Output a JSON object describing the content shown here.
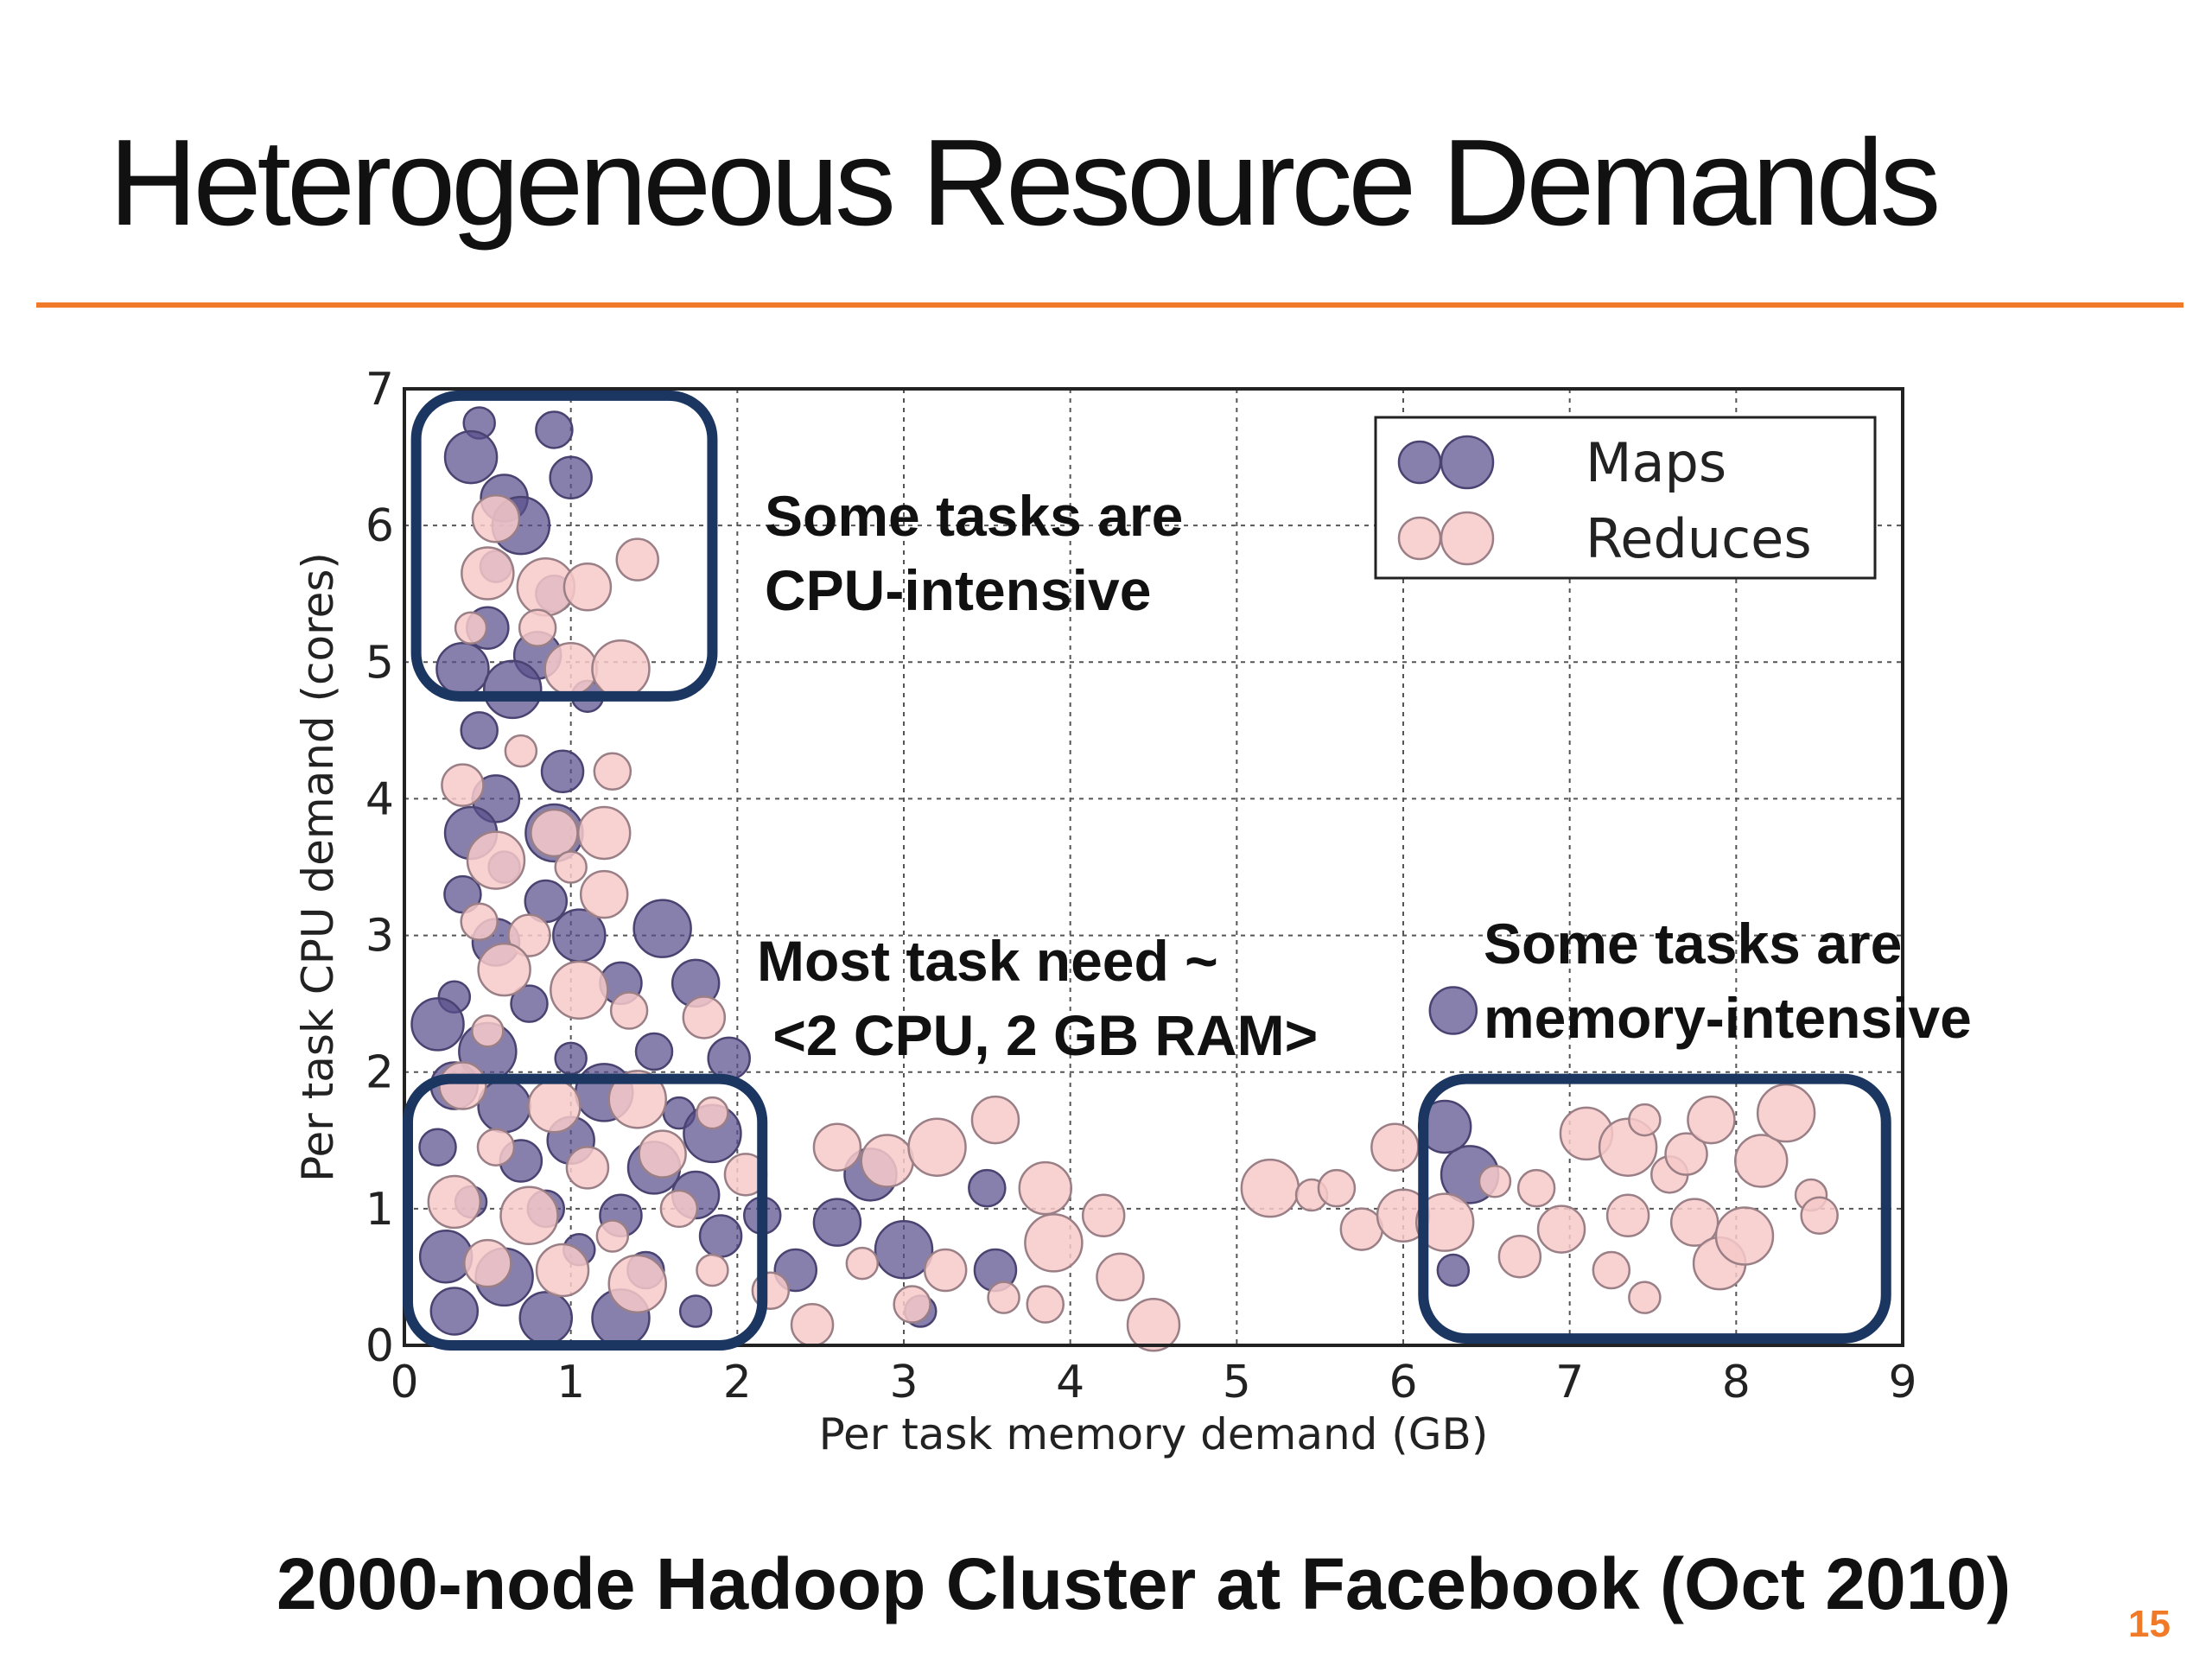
{
  "slide": {
    "title": "Heterogeneous Resource Demands",
    "caption": "2000-node Hadoop Cluster at Facebook (Oct 2010)",
    "page_number": "15",
    "accent_color": "#f07a28"
  },
  "chart_data": {
    "type": "scatter",
    "xlabel": "Per task memory demand (GB)",
    "ylabel": "Per task CPU demand (cores)",
    "xlim": [
      0,
      9
    ],
    "ylim": [
      0,
      7
    ],
    "xticks": [
      "0",
      "1",
      "2",
      "3",
      "4",
      "5",
      "6",
      "7",
      "8",
      "9"
    ],
    "yticks": [
      "0",
      "1",
      "2",
      "3",
      "4",
      "5",
      "6",
      "7"
    ],
    "grid": true,
    "legend_position": "top-right",
    "series": [
      {
        "name": "Maps",
        "color": "#5a4f8c",
        "points": [
          [
            0.45,
            6.75
          ],
          [
            0.9,
            6.7
          ],
          [
            1.0,
            6.35
          ],
          [
            0.6,
            6.2
          ],
          [
            0.4,
            6.5
          ],
          [
            0.7,
            6.0
          ],
          [
            0.55,
            5.7
          ],
          [
            0.9,
            5.5
          ],
          [
            0.5,
            5.25
          ],
          [
            0.8,
            5.05
          ],
          [
            0.35,
            4.95
          ],
          [
            0.65,
            4.8
          ],
          [
            1.1,
            4.75
          ],
          [
            0.45,
            4.5
          ],
          [
            0.95,
            4.2
          ],
          [
            0.55,
            4.0
          ],
          [
            0.4,
            3.75
          ],
          [
            0.9,
            3.75
          ],
          [
            0.6,
            3.5
          ],
          [
            0.35,
            3.3
          ],
          [
            0.85,
            3.25
          ],
          [
            0.55,
            2.95
          ],
          [
            1.05,
            3.0
          ],
          [
            1.55,
            3.05
          ],
          [
            0.3,
            2.55
          ],
          [
            0.75,
            2.5
          ],
          [
            1.3,
            2.65
          ],
          [
            1.75,
            2.65
          ],
          [
            0.2,
            2.35
          ],
          [
            0.5,
            2.15
          ],
          [
            1.0,
            2.1
          ],
          [
            1.5,
            2.15
          ],
          [
            1.95,
            2.1
          ],
          [
            0.3,
            1.9
          ],
          [
            0.6,
            1.75
          ],
          [
            1.2,
            1.85
          ],
          [
            1.65,
            1.7
          ],
          [
            0.2,
            1.45
          ],
          [
            0.7,
            1.35
          ],
          [
            1.0,
            1.5
          ],
          [
            1.5,
            1.3
          ],
          [
            1.85,
            1.55
          ],
          [
            0.4,
            1.05
          ],
          [
            0.85,
            1.0
          ],
          [
            1.3,
            0.95
          ],
          [
            1.75,
            1.1
          ],
          [
            0.25,
            0.65
          ],
          [
            0.6,
            0.5
          ],
          [
            1.05,
            0.7
          ],
          [
            1.45,
            0.55
          ],
          [
            1.9,
            0.8
          ],
          [
            0.3,
            0.25
          ],
          [
            0.85,
            0.2
          ],
          [
            1.3,
            0.2
          ],
          [
            1.75,
            0.25
          ],
          [
            2.15,
            0.95
          ],
          [
            2.35,
            0.55
          ],
          [
            2.6,
            0.9
          ],
          [
            2.8,
            1.25
          ],
          [
            3.0,
            0.7
          ],
          [
            3.1,
            0.25
          ],
          [
            3.5,
            1.15
          ],
          [
            3.55,
            0.55
          ],
          [
            6.3,
            2.45
          ],
          [
            6.25,
            1.6
          ],
          [
            6.4,
            1.25
          ],
          [
            6.3,
            0.55
          ]
        ]
      },
      {
        "name": "Reduces",
        "color": "#f7c9c9",
        "points": [
          [
            0.55,
            6.05
          ],
          [
            0.5,
            5.65
          ],
          [
            0.85,
            5.55
          ],
          [
            0.4,
            5.25
          ],
          [
            0.8,
            5.25
          ],
          [
            1.4,
            5.75
          ],
          [
            1.1,
            5.55
          ],
          [
            1.0,
            4.95
          ],
          [
            1.3,
            4.95
          ],
          [
            0.7,
            4.35
          ],
          [
            1.25,
            4.2
          ],
          [
            0.35,
            4.1
          ],
          [
            0.9,
            3.75
          ],
          [
            1.2,
            3.75
          ],
          [
            0.55,
            3.55
          ],
          [
            1.0,
            3.5
          ],
          [
            0.45,
            3.1
          ],
          [
            0.75,
            3.0
          ],
          [
            1.2,
            3.3
          ],
          [
            0.6,
            2.75
          ],
          [
            1.05,
            2.6
          ],
          [
            0.5,
            2.3
          ],
          [
            1.35,
            2.45
          ],
          [
            1.8,
            2.4
          ],
          [
            0.35,
            1.9
          ],
          [
            0.9,
            1.75
          ],
          [
            1.4,
            1.8
          ],
          [
            1.85,
            1.7
          ],
          [
            0.55,
            1.45
          ],
          [
            1.1,
            1.3
          ],
          [
            1.55,
            1.4
          ],
          [
            0.3,
            1.05
          ],
          [
            0.75,
            0.95
          ],
          [
            1.25,
            0.8
          ],
          [
            1.65,
            1.0
          ],
          [
            2.05,
            1.25
          ],
          [
            0.5,
            0.6
          ],
          [
            0.95,
            0.55
          ],
          [
            1.4,
            0.45
          ],
          [
            1.85,
            0.55
          ],
          [
            2.2,
            0.4
          ],
          [
            2.45,
            0.15
          ],
          [
            2.6,
            1.45
          ],
          [
            2.9,
            1.35
          ],
          [
            3.2,
            1.45
          ],
          [
            2.75,
            0.6
          ],
          [
            3.05,
            0.3
          ],
          [
            3.25,
            0.55
          ],
          [
            3.55,
            1.65
          ],
          [
            3.85,
            1.15
          ],
          [
            3.9,
            0.75
          ],
          [
            3.6,
            0.35
          ],
          [
            3.85,
            0.3
          ],
          [
            4.2,
            0.95
          ],
          [
            4.3,
            0.5
          ],
          [
            4.5,
            0.15
          ],
          [
            5.2,
            1.15
          ],
          [
            5.45,
            1.1
          ],
          [
            5.6,
            1.15
          ],
          [
            5.75,
            0.85
          ],
          [
            5.95,
            1.45
          ],
          [
            6.0,
            0.95
          ],
          [
            6.25,
            0.9
          ],
          [
            6.55,
            1.2
          ],
          [
            6.8,
            1.15
          ],
          [
            6.7,
            0.65
          ],
          [
            6.95,
            0.85
          ],
          [
            7.1,
            1.55
          ],
          [
            7.35,
            1.45
          ],
          [
            7.45,
            1.65
          ],
          [
            7.6,
            1.25
          ],
          [
            7.7,
            1.4
          ],
          [
            7.85,
            1.65
          ],
          [
            8.15,
            1.35
          ],
          [
            8.3,
            1.7
          ],
          [
            8.45,
            1.1
          ],
          [
            8.5,
            0.95
          ],
          [
            7.35,
            0.95
          ],
          [
            7.75,
            0.9
          ],
          [
            7.9,
            0.6
          ],
          [
            8.05,
            0.8
          ],
          [
            7.45,
            0.35
          ],
          [
            7.25,
            0.55
          ]
        ]
      }
    ],
    "annotations": [
      {
        "lines": [
          "Some tasks are",
          "CPU-intensive"
        ],
        "x_range": [
          0.05,
          1.85
        ],
        "y_range": [
          4.75,
          6.95
        ]
      },
      {
        "lines": [
          "Most task need ~",
          " <2 CPU, 2 GB RAM>"
        ],
        "x_range": [
          0.0,
          2.15
        ],
        "y_range": [
          0.0,
          1.95
        ]
      },
      {
        "lines": [
          "Some tasks are",
          "memory-intensive"
        ],
        "x_range": [
          6.1,
          8.9
        ],
        "y_range": [
          0.05,
          1.95
        ]
      }
    ]
  }
}
